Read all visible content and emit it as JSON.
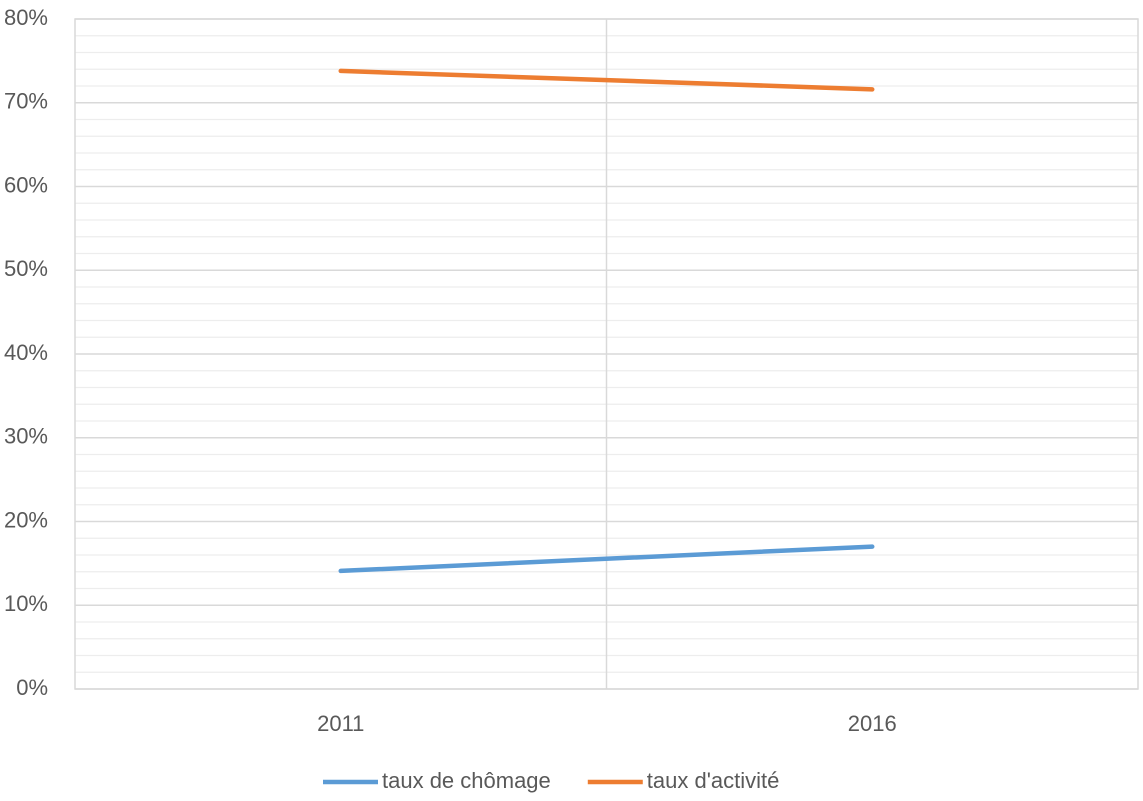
{
  "chart_data": {
    "type": "line",
    "categories": [
      "2011",
      "2016"
    ],
    "series": [
      {
        "name": "taux de chômage",
        "color": "#5b9bd5",
        "values": [
          14.1,
          17.0
        ]
      },
      {
        "name": "taux d'activité",
        "color": "#ed7d31",
        "values": [
          73.8,
          71.6
        ]
      }
    ],
    "ylim": [
      0,
      80
    ],
    "yticks": [
      {
        "value": 0,
        "label": "0%"
      },
      {
        "value": 10,
        "label": "10%"
      },
      {
        "value": 20,
        "label": "20%"
      },
      {
        "value": 30,
        "label": "30%"
      },
      {
        "value": 40,
        "label": "40%"
      },
      {
        "value": 50,
        "label": "50%"
      },
      {
        "value": 60,
        "label": "60%"
      },
      {
        "value": 70,
        "label": "70%"
      },
      {
        "value": 80,
        "label": "80%"
      }
    ],
    "grid": true,
    "minor_grid": true,
    "legend": "bottom"
  }
}
